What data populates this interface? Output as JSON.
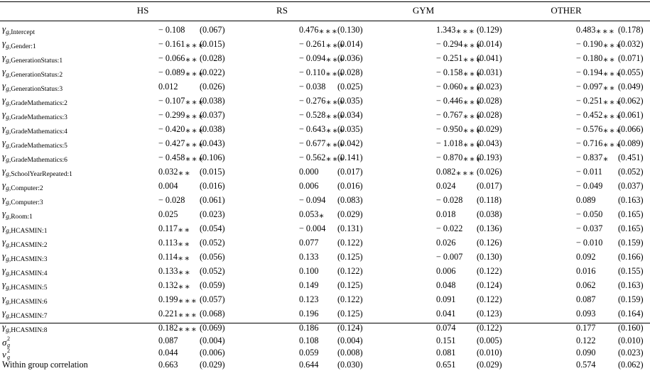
{
  "columns": [
    "HS",
    "RS",
    "GYM",
    "OTHER"
  ],
  "rows": [
    {
      "label": "Intercept",
      "type": "gamma",
      "cells": [
        [
          "− 0.108",
          "",
          "(0.067)"
        ],
        [
          "0.476",
          "∗∗∗",
          "(0.130)"
        ],
        [
          "1.343",
          "∗∗∗",
          "(0.129)"
        ],
        [
          "0.483",
          "∗∗∗",
          "(0.178)"
        ]
      ]
    },
    {
      "label": "Gender:1",
      "type": "gamma",
      "cells": [
        [
          "− 0.161",
          "∗∗∗",
          "(0.015)"
        ],
        [
          "− 0.261",
          "∗∗∗",
          "(0.014)"
        ],
        [
          "− 0.294",
          "∗∗∗",
          "(0.014)"
        ],
        [
          "− 0.190",
          "∗∗∗",
          "(0.032)"
        ]
      ]
    },
    {
      "label": "GenerationStatus:1",
      "type": "gamma",
      "cells": [
        [
          "− 0.066",
          "∗∗",
          "(0.028)"
        ],
        [
          "− 0.094",
          "∗∗∗",
          "(0.036)"
        ],
        [
          "− 0.251",
          "∗∗∗",
          "(0.041)"
        ],
        [
          "− 0.180",
          "∗∗",
          "(0.071)"
        ]
      ]
    },
    {
      "label": "GenerationStatus:2",
      "type": "gamma",
      "cells": [
        [
          "− 0.089",
          "∗∗∗",
          "(0.022)"
        ],
        [
          "− 0.110",
          "∗∗∗",
          "(0.028)"
        ],
        [
          "− 0.158",
          "∗∗∗",
          "(0.031)"
        ],
        [
          "− 0.194",
          "∗∗∗",
          "(0.055)"
        ]
      ]
    },
    {
      "label": "GenerationStatus:3",
      "type": "gamma",
      "cells": [
        [
          "0.012",
          "",
          "(0.026)"
        ],
        [
          "− 0.038",
          "",
          "(0.025)"
        ],
        [
          "− 0.060",
          "∗∗∗",
          "(0.023)"
        ],
        [
          "− 0.097",
          "∗∗",
          "(0.049)"
        ]
      ]
    },
    {
      "label": "GradeMathematics:2",
      "type": "gamma",
      "cells": [
        [
          "− 0.107",
          "∗∗∗",
          "(0.038)"
        ],
        [
          "− 0.276",
          "∗∗∗",
          "(0.035)"
        ],
        [
          "− 0.446",
          "∗∗∗",
          "(0.028)"
        ],
        [
          "− 0.251",
          "∗∗∗",
          "(0.062)"
        ]
      ]
    },
    {
      "label": "GradeMathematics:3",
      "type": "gamma",
      "cells": [
        [
          "− 0.299",
          "∗∗∗",
          "(0.037)"
        ],
        [
          "− 0.528",
          "∗∗∗",
          "(0.034)"
        ],
        [
          "− 0.767",
          "∗∗∗",
          "(0.028)"
        ],
        [
          "− 0.452",
          "∗∗∗",
          "(0.061)"
        ]
      ]
    },
    {
      "label": "GradeMathematics:4",
      "type": "gamma",
      "cells": [
        [
          "− 0.420",
          "∗∗∗",
          "(0.038)"
        ],
        [
          "− 0.643",
          "∗∗∗",
          "(0.035)"
        ],
        [
          "− 0.950",
          "∗∗∗",
          "(0.029)"
        ],
        [
          "− 0.576",
          "∗∗∗",
          "(0.066)"
        ]
      ]
    },
    {
      "label": "GradeMathematics:5",
      "type": "gamma",
      "cells": [
        [
          "− 0.427",
          "∗∗∗",
          "(0.043)"
        ],
        [
          "− 0.677",
          "∗∗∗",
          "(0.042)"
        ],
        [
          "− 1.018",
          "∗∗∗",
          "(0.043)"
        ],
        [
          "− 0.716",
          "∗∗∗",
          "(0.089)"
        ]
      ]
    },
    {
      "label": "GradeMathematics:6",
      "type": "gamma",
      "cells": [
        [
          "− 0.458",
          "∗∗∗",
          "(0.106)"
        ],
        [
          "− 0.562",
          "∗∗∗",
          "(0.141)"
        ],
        [
          "− 0.870",
          "∗∗∗",
          "(0.193)"
        ],
        [
          "− 0.837",
          "∗",
          "(0.451)"
        ]
      ]
    },
    {
      "label": "SchoolYearRepeated:1",
      "type": "gamma",
      "cells": [
        [
          "0.032",
          "∗∗",
          "(0.015)"
        ],
        [
          "0.000",
          "",
          "(0.017)"
        ],
        [
          "0.082",
          "∗∗∗",
          "(0.026)"
        ],
        [
          "− 0.011",
          "",
          "(0.052)"
        ]
      ]
    },
    {
      "label": "Computer:2",
      "type": "gamma",
      "cells": [
        [
          "0.004",
          "",
          "(0.016)"
        ],
        [
          "0.006",
          "",
          "(0.016)"
        ],
        [
          "0.024",
          "",
          "(0.017)"
        ],
        [
          "− 0.049",
          "",
          "(0.037)"
        ]
      ]
    },
    {
      "label": "Computer:3",
      "type": "gamma",
      "cells": [
        [
          "− 0.028",
          "",
          "(0.061)"
        ],
        [
          "− 0.094",
          "",
          "(0.083)"
        ],
        [
          "− 0.028",
          "",
          "(0.118)"
        ],
        [
          "0.089",
          "",
          "(0.163)"
        ]
      ]
    },
    {
      "label": "Room:1",
      "type": "gamma",
      "cells": [
        [
          "0.025",
          "",
          "(0.023)"
        ],
        [
          "0.053",
          "∗",
          "(0.029)"
        ],
        [
          "0.018",
          "",
          "(0.038)"
        ],
        [
          "− 0.050",
          "",
          "(0.165)"
        ]
      ]
    },
    {
      "label": "HCASMIN:1",
      "type": "gamma",
      "cells": [
        [
          "0.117",
          "∗∗",
          "(0.054)"
        ],
        [
          "− 0.004",
          "",
          "(0.131)"
        ],
        [
          "− 0.022",
          "",
          "(0.136)"
        ],
        [
          "− 0.037",
          "",
          "(0.165)"
        ]
      ]
    },
    {
      "label": "HCASMIN:2",
      "type": "gamma",
      "cells": [
        [
          "0.113",
          "∗∗",
          "(0.052)"
        ],
        [
          "0.077",
          "",
          "(0.122)"
        ],
        [
          "0.026",
          "",
          "(0.126)"
        ],
        [
          "− 0.010",
          "",
          "(0.159)"
        ]
      ]
    },
    {
      "label": "HCASMIN:3",
      "type": "gamma",
      "cells": [
        [
          "0.114",
          "∗∗",
          "(0.056)"
        ],
        [
          "0.133",
          "",
          "(0.125)"
        ],
        [
          "− 0.007",
          "",
          "(0.130)"
        ],
        [
          "0.092",
          "",
          "(0.166)"
        ]
      ]
    },
    {
      "label": "HCASMIN:4",
      "type": "gamma",
      "cells": [
        [
          "0.133",
          "∗∗",
          "(0.052)"
        ],
        [
          "0.100",
          "",
          "(0.122)"
        ],
        [
          "0.006",
          "",
          "(0.122)"
        ],
        [
          "0.016",
          "",
          "(0.155)"
        ]
      ]
    },
    {
      "label": "HCASMIN:5",
      "type": "gamma",
      "cells": [
        [
          "0.132",
          "∗∗",
          "(0.059)"
        ],
        [
          "0.149",
          "",
          "(0.125)"
        ],
        [
          "0.048",
          "",
          "(0.124)"
        ],
        [
          "0.062",
          "",
          "(0.163)"
        ]
      ]
    },
    {
      "label": "HCASMIN:6",
      "type": "gamma",
      "cells": [
        [
          "0.199",
          "∗∗∗",
          "(0.057)"
        ],
        [
          "0.123",
          "",
          "(0.122)"
        ],
        [
          "0.091",
          "",
          "(0.122)"
        ],
        [
          "0.087",
          "",
          "(0.159)"
        ]
      ]
    },
    {
      "label": "HCASMIN:7",
      "type": "gamma",
      "cells": [
        [
          "0.221",
          "∗∗∗",
          "(0.068)"
        ],
        [
          "0.196",
          "",
          "(0.125)"
        ],
        [
          "0.041",
          "",
          "(0.123)"
        ],
        [
          "0.093",
          "",
          "(0.164)"
        ]
      ]
    },
    {
      "label": "HCASMIN:8",
      "type": "gamma",
      "cells": [
        [
          "0.182",
          "∗∗∗",
          "(0.069)"
        ],
        [
          "0.186",
          "",
          "(0.124)"
        ],
        [
          "0.074",
          "",
          "(0.122)"
        ],
        [
          "0.177",
          "",
          "(0.160)"
        ]
      ]
    },
    {
      "label": "σ",
      "type": "sigma",
      "cells": [
        [
          "0.087",
          "",
          "(0.004)"
        ],
        [
          "0.108",
          "",
          "(0.004)"
        ],
        [
          "0.151",
          "",
          "(0.005)"
        ],
        [
          "0.122",
          "",
          "(0.010)"
        ]
      ]
    },
    {
      "label": "ν",
      "type": "nu",
      "cells": [
        [
          "0.044",
          "",
          "(0.006)"
        ],
        [
          "0.059",
          "",
          "(0.008)"
        ],
        [
          "0.081",
          "",
          "(0.010)"
        ],
        [
          "0.090",
          "",
          "(0.023)"
        ]
      ]
    },
    {
      "label": "Within group correlation",
      "type": "plain",
      "cells": [
        [
          "0.663",
          "",
          "(0.029)"
        ],
        [
          "0.644",
          "",
          "(0.030)"
        ],
        [
          "0.651",
          "",
          "(0.029)"
        ],
        [
          "0.574",
          "",
          "(0.062)"
        ]
      ]
    }
  ],
  "symbols": {
    "gamma": "γ",
    "g": "g",
    "squared": "2"
  }
}
